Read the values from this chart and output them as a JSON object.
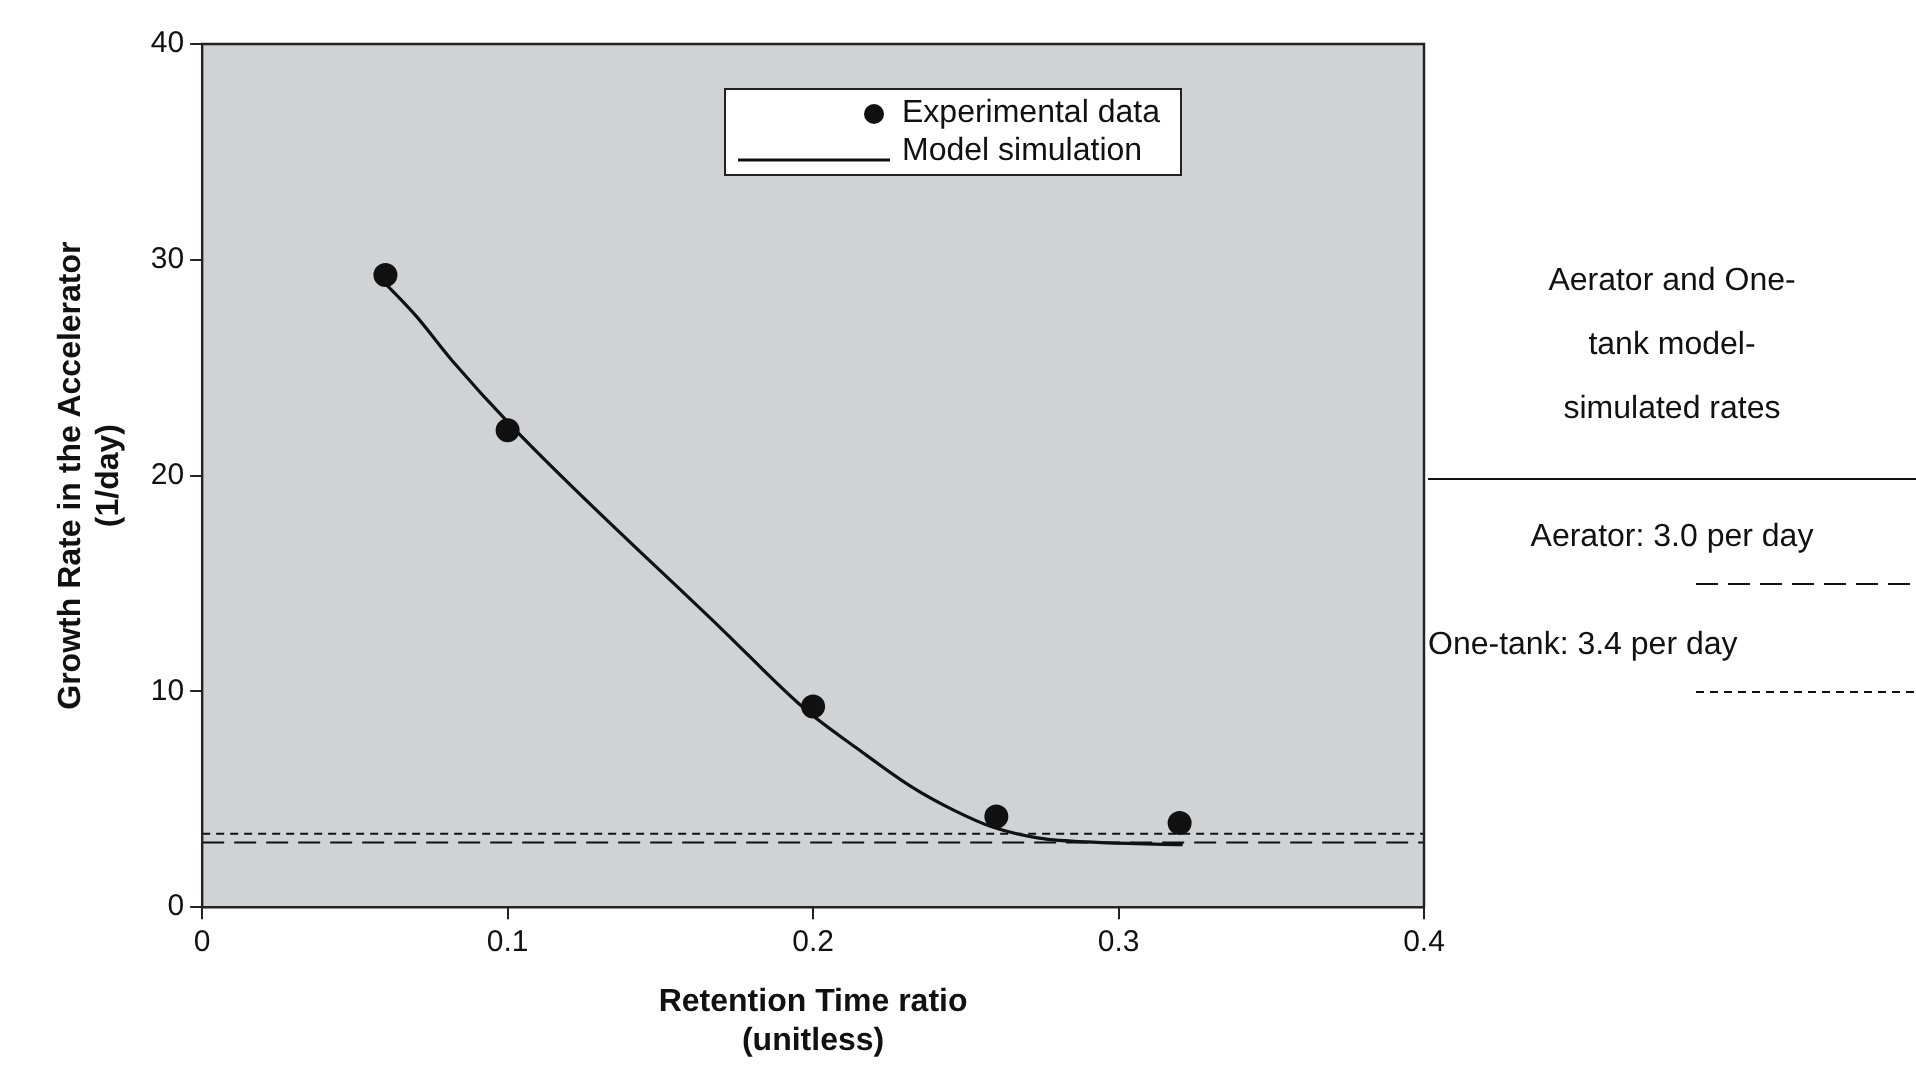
{
  "chart_data": {
    "type": "scatter",
    "xlabel": "Retention Time ratio\n(unitless)",
    "ylabel": "Growth Rate in the Accelerator\n(1/day)",
    "legend_title": "Aerator and One-tank model-simulated rates",
    "xlim": [
      0,
      0.4
    ],
    "xticks": [
      0,
      0.1,
      0.2,
      0.3,
      0.4
    ],
    "ylim": [
      0,
      40
    ],
    "yticks": [
      0,
      10,
      20,
      30,
      40
    ],
    "grid": false,
    "legend": "top right",
    "series": [
      {
        "name": "Experimental data",
        "type": "scatter",
        "marker": "circle",
        "color": "#111111",
        "x": [
          0.06,
          0.1,
          0.2,
          0.26,
          0.32
        ],
        "values": [
          29.3,
          22.1,
          9.3,
          4.2,
          3.9
        ]
      },
      {
        "name": "Model simulation",
        "type": "line",
        "marker": "none",
        "line_style": "solid",
        "color": "#111111",
        "x": [
          0.06,
          0.07,
          0.082,
          0.104,
          0.17,
          0.198,
          0.214,
          0.232,
          0.246,
          0.259,
          0.274,
          0.293,
          0.321
        ],
        "values": [
          28.9,
          27.4,
          25.3,
          21.9,
          12.9,
          9.1,
          7.4,
          5.6,
          4.5,
          3.7,
          3.2,
          3.0,
          2.9
        ]
      }
    ],
    "ref_lines": [
      {
        "axis": "y",
        "value": 3.0,
        "line_style": "dashed",
        "color": "#111111"
      },
      {
        "axis": "y",
        "value": 3.4,
        "line_style": "dotted",
        "color": "#111111"
      }
    ],
    "annotations": [
      "Aerator: 3.0 per day",
      "One-tank: 3.4 per day"
    ]
  }
}
